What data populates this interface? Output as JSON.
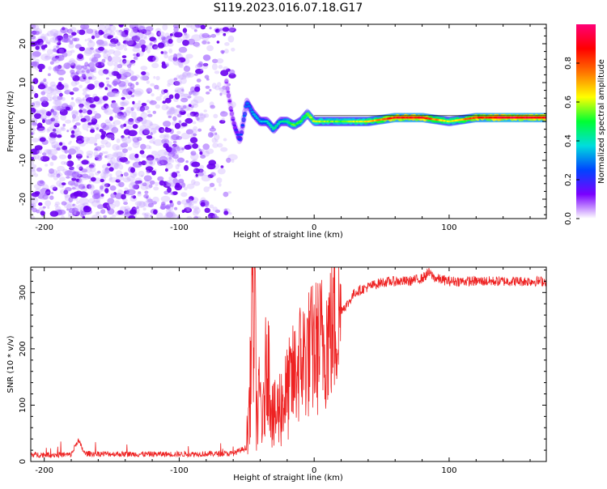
{
  "figure": {
    "title": "S119.2023.016.07.18.G17"
  },
  "chart_data": [
    {
      "type": "heatmap",
      "panel": "top",
      "xlabel": "Height of straight line (km)",
      "ylabel": "Frequency (Hz)",
      "xlim": [
        -210,
        172
      ],
      "ylim": [
        -25,
        25
      ],
      "xticks": [
        -200,
        -100,
        0,
        100
      ],
      "yticks": [
        -20,
        -10,
        0,
        10,
        20
      ],
      "colorbar": {
        "label": "Normalized spectral amplitude",
        "range": [
          0,
          1
        ],
        "ticks": [
          0.0,
          0.2,
          0.4,
          0.6,
          0.8
        ],
        "colormap": [
          "#ffffff",
          "#7a00ff",
          "#0044ff",
          "#00dddd",
          "#00ff33",
          "#ffff00",
          "#ff7700",
          "#ff0000",
          "#ff0077"
        ]
      },
      "signal_track": {
        "x": [
          -65,
          -60,
          -55,
          -50,
          -45,
          -40,
          -35,
          -30,
          -25,
          -20,
          -15,
          -10,
          -5,
          0,
          20,
          40,
          60,
          80,
          100,
          120,
          140,
          172
        ],
        "frequency": [
          10,
          0,
          -5,
          5,
          2,
          0,
          0,
          -2,
          0,
          0,
          -1,
          0,
          2,
          0,
          0,
          0,
          1,
          1,
          0,
          1,
          1,
          1
        ],
        "peak_amplitude": [
          0.1,
          0.15,
          0.25,
          0.3,
          0.35,
          0.35,
          0.4,
          0.45,
          0.4,
          0.45,
          0.55,
          0.5,
          0.55,
          0.6,
          0.55,
          0.65,
          0.9,
          0.9,
          0.6,
          0.85,
          0.95,
          0.9
        ]
      },
      "noise_region_x": [
        -210,
        -60
      ]
    },
    {
      "type": "line",
      "panel": "bottom",
      "xlabel": "Height of straight line (km)",
      "ylabel": "SNR (10 * v/v)",
      "xlim": [
        -210,
        172
      ],
      "ylim": [
        0,
        345
      ],
      "xticks": [
        -200,
        -100,
        0,
        100
      ],
      "yticks": [
        0,
        100,
        200,
        300
      ],
      "color": "#ee2222",
      "series": [
        {
          "x": [
            -210,
            -180,
            -175,
            -170,
            -140,
            -100,
            -60,
            -50,
            -47,
            -46,
            -45,
            -44,
            -43,
            -42,
            -40,
            -38,
            -35,
            -30,
            -25,
            -20,
            -15,
            -10,
            -5,
            0,
            5,
            10,
            15,
            20,
            25,
            30,
            40,
            50,
            60,
            70,
            80,
            85,
            90,
            100,
            120,
            140,
            172
          ],
          "y": [
            12,
            12,
            38,
            14,
            13,
            13,
            14,
            25,
            150,
            345,
            200,
            340,
            100,
            80,
            120,
            60,
            200,
            70,
            100,
            120,
            150,
            180,
            190,
            200,
            210,
            225,
            245,
            270,
            280,
            300,
            310,
            318,
            320,
            320,
            325,
            335,
            325,
            320,
            320,
            320,
            320
          ]
        }
      ]
    }
  ]
}
